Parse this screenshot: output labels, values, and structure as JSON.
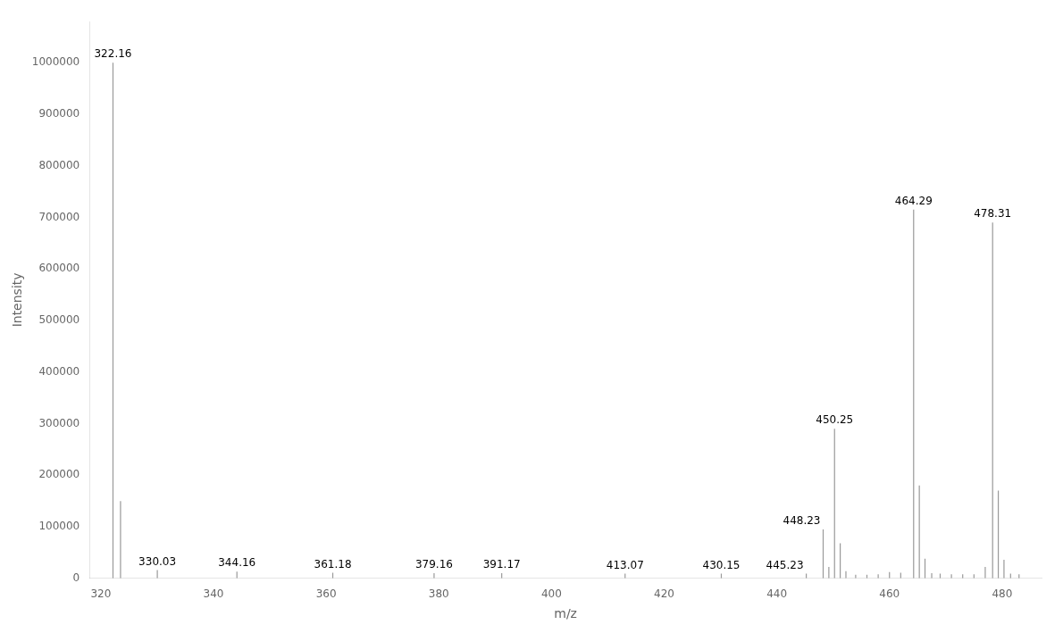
{
  "chart_data": {
    "type": "stem",
    "xlabel": "m/z",
    "ylabel": "Intensity",
    "x": [
      322.16,
      323.5,
      330.03,
      344.16,
      361.18,
      379.16,
      391.17,
      413.07,
      430.15,
      445.23,
      448.23,
      449.24,
      450.25,
      451.26,
      452.27,
      454.0,
      456.0,
      458.0,
      460.0,
      462.0,
      464.29,
      465.3,
      466.31,
      467.5,
      469.0,
      471.0,
      473.0,
      475.0,
      477.0,
      478.31,
      479.32,
      480.33,
      481.5,
      483.0
    ],
    "values": [
      1000000,
      150000,
      16000,
      13000,
      11000,
      10000,
      10000,
      9000,
      9000,
      9000,
      95000,
      22000,
      290000,
      68000,
      14000,
      7000,
      7000,
      8000,
      12000,
      11000,
      715000,
      180000,
      38000,
      10000,
      9000,
      8000,
      8000,
      8000,
      22000,
      690000,
      170000,
      36000,
      9000,
      8000
    ],
    "color": "#999999",
    "xlim": [
      318,
      487
    ],
    "ylim": [
      0,
      1080000
    ],
    "xticks": [
      320,
      340,
      360,
      380,
      400,
      420,
      440,
      460,
      480
    ],
    "yticks": [
      0,
      100000,
      200000,
      300000,
      400000,
      500000,
      600000,
      700000,
      800000,
      900000,
      1000000
    ],
    "grid": false,
    "annotations": [
      {
        "text": "322.16",
        "x": 322.16,
        "y": 1000000
      },
      {
        "text": "330.03",
        "x": 330.03,
        "y": 16000
      },
      {
        "text": "344.16",
        "x": 344.16,
        "y": 13000
      },
      {
        "text": "361.18",
        "x": 361.18,
        "y": 11000
      },
      {
        "text": "379.16",
        "x": 379.16,
        "y": 10000
      },
      {
        "text": "391.17",
        "x": 391.17,
        "y": 10000
      },
      {
        "text": "413.07",
        "x": 413.07,
        "y": 9000
      },
      {
        "text": "430.15",
        "x": 430.15,
        "y": 9000
      },
      {
        "text": "445.23",
        "x": 445.23,
        "y": 9000
      },
      {
        "text": "448.23",
        "x": 448.23,
        "y": 95000
      },
      {
        "text": "450.25",
        "x": 450.25,
        "y": 290000
      },
      {
        "text": "464.29",
        "x": 464.29,
        "y": 715000
      },
      {
        "text": "478.31",
        "x": 478.31,
        "y": 690000
      }
    ]
  }
}
